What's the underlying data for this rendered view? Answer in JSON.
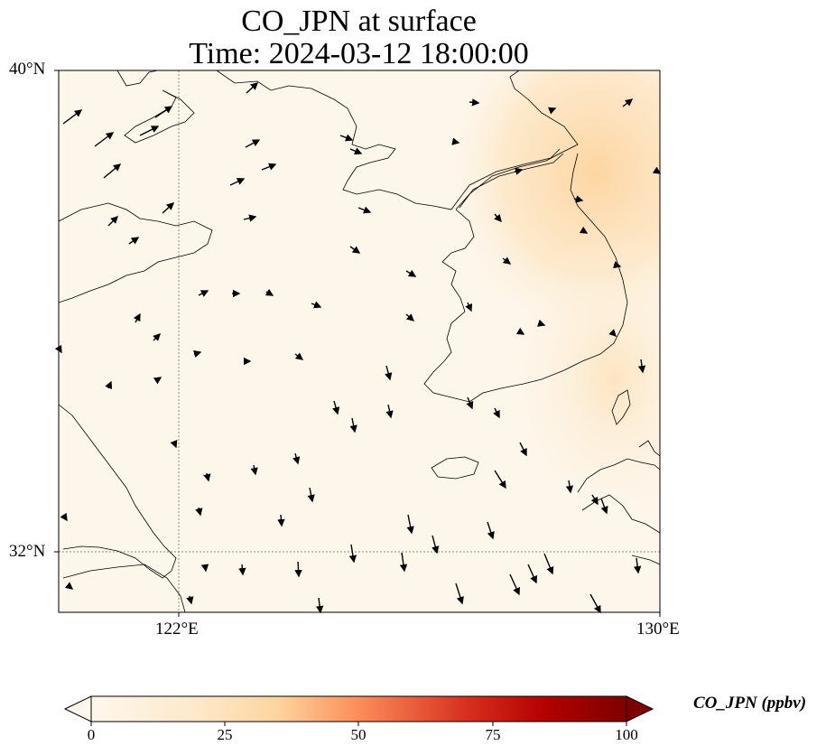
{
  "title": {
    "line1": "CO_JPN at surface",
    "line2": "Time: 2024-03-12 18:00:00"
  },
  "axes": {
    "lat_labels": [
      "40°N",
      "32°N"
    ],
    "lon_labels": [
      "122°E",
      "130°E"
    ],
    "extent": {
      "lon": [
        120,
        130
      ],
      "lat": [
        31,
        40
      ]
    }
  },
  "colorbar": {
    "label": "CO_JPN (ppbv)",
    "ticks": [
      "0",
      "25",
      "50",
      "75",
      "100"
    ],
    "range": [
      0,
      100
    ],
    "colormap": "OrRd",
    "extend": "both"
  },
  "colors": {
    "background": "#fdf6ea",
    "plume": "#fdd49e",
    "coast": "#000000"
  }
}
